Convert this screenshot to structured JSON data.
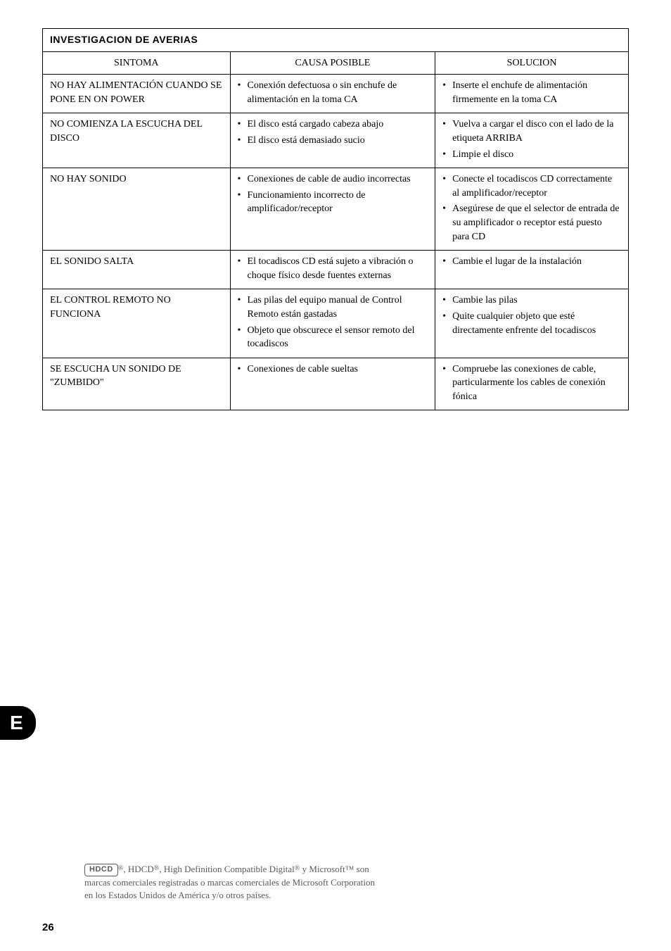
{
  "table": {
    "title": "INVESTIGACION DE AVERIAS",
    "headers": {
      "sintoma": "SINTOMA",
      "causa": "CAUSA POSIBLE",
      "solucion": "SOLUCION"
    },
    "rows": [
      {
        "sintoma": "NO HAY ALIMENTACIÓN CUANDO SE PONE EN ON POWER",
        "causas": [
          "Conexión defectuosa o sin enchufe de alimentación en la toma CA"
        ],
        "soluciones": [
          "Inserte el enchufe de alimentación firmemente en la toma CA"
        ]
      },
      {
        "sintoma": "NO COMIENZA LA ESCUCHA DEL DISCO",
        "causas": [
          "El disco está cargado cabeza abajo",
          "El disco está demasiado sucio"
        ],
        "soluciones": [
          "Vuelva a cargar el disco con el lado de la etiqueta ARRIBA",
          "Limpie el disco"
        ]
      },
      {
        "sintoma": "NO HAY SONIDO",
        "causas": [
          "Conexiones de cable de audio incorrectas",
          "Funcionamiento incorrecto de amplificador/receptor"
        ],
        "soluciones": [
          "Conecte el tocadiscos  CD correctamente al amplificador/receptor",
          "Asegúrese de que el selector de entrada de su amplificador o receptor está puesto para CD"
        ]
      },
      {
        "sintoma": "EL SONIDO SALTA",
        "causas": [
          "El tocadiscos CD está sujeto a vibración o choque físico desde fuentes externas"
        ],
        "soluciones": [
          "Cambie el lugar de la instalación"
        ]
      },
      {
        "sintoma": "EL CONTROL REMOTO NO FUNCIONA",
        "causas": [
          "Las pilas del equipo manual de Control Remoto están gastadas",
          "Objeto que obscurece el sensor remoto del tocadiscos"
        ],
        "soluciones": [
          "Cambie las pilas",
          "Quite cualquier objeto que esté directamente enfrente del tocadiscos"
        ]
      },
      {
        "sintoma": "SE ESCUCHA UN SONIDO DE \"ZUMBIDO\"",
        "causas": [
          "Conexiones de cable sueltas"
        ],
        "soluciones": [
          "Compruebe las conexiones de cable, particularmente los cables de conexión fónica"
        ]
      }
    ]
  },
  "langBadge": "E",
  "footer": {
    "hdcdLogo": "HDCD",
    "footRef": "®",
    "text1": ", HDCD",
    "reg1": "®",
    "text2": ", High Definition Compatible Digital",
    "reg2": "®",
    "text3": " y Microsoft™ son marcas comerciales registradas o marcas comerciales de Microsoft  Corporation en los Estados Unidos de América y/o otros países."
  },
  "pageNumber": "26"
}
